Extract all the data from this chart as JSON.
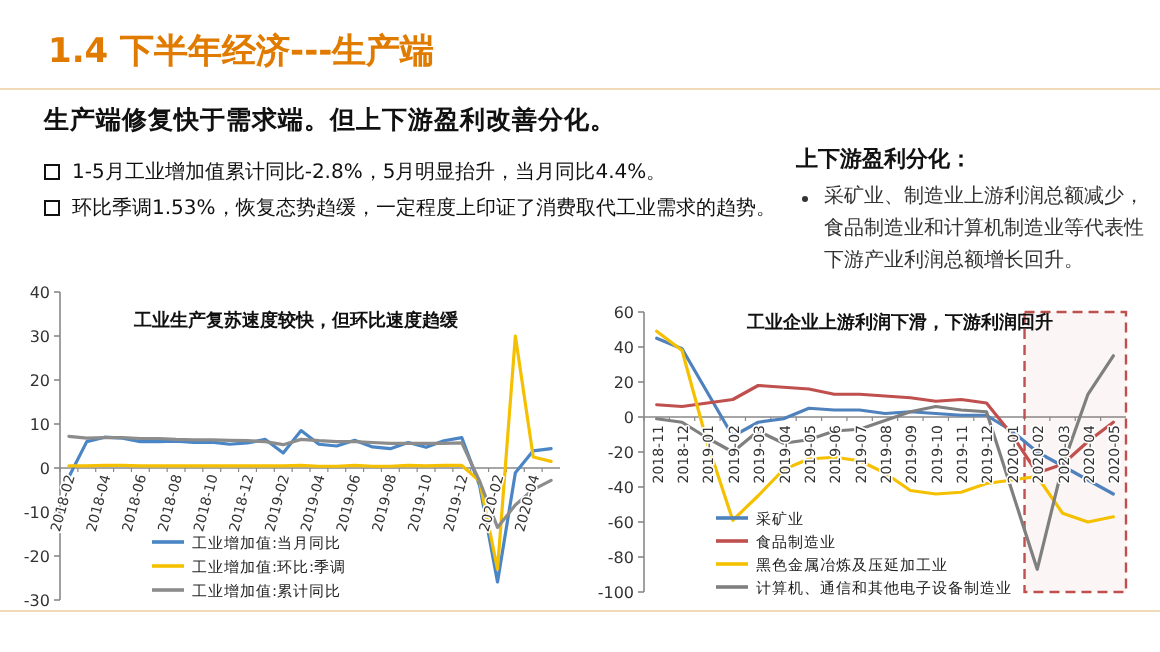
{
  "chart_data": [
    {
      "type": "other",
      "title": "1.4 下半年经济---生产端",
      "subtitle": "生产端修复快于需求端。但上下游盈利改善分化。",
      "annotations": [
        "1-5月工业增加值累计同比-2.8%，5月明显抬升，当月同比4.4%。",
        "环比季调1.53%，恢复态势趋缓，一定程度上印证了消费取代工业需求的趋势。",
        "上下游盈利分化：",
        "采矿业、制造业上游利润总额减少，食品制造业和计算机制造业等代表性下游产业利润总额增长回升。"
      ]
    },
    {
      "type": "line",
      "title": "工业生产复苏速度较快，但环比速度趋缓",
      "categories": [
        "2018-02",
        null,
        "2018-04",
        null,
        "2018-06",
        null,
        "2018-08",
        null,
        "2018-10",
        null,
        "2018-12",
        null,
        "2019-02",
        null,
        "2019-04",
        null,
        "2019-06",
        null,
        "2019-08",
        null,
        "2019-10",
        null,
        "2019-12",
        null,
        "2020-02",
        null,
        "2020-04",
        null
      ],
      "series": [
        {
          "name": "工业增加值:当月同比",
          "color": "#4a86c5",
          "values": [
            -2,
            6.0,
            7.0,
            6.8,
            6.0,
            6.0,
            6.1,
            5.8,
            5.9,
            5.4,
            5.7,
            6.5,
            3.4,
            8.5,
            5.4,
            5.0,
            6.3,
            4.8,
            4.4,
            5.8,
            4.7,
            6.2,
            6.9,
            -4,
            -25.9,
            -1.1,
            3.9,
            4.4
          ]
        },
        {
          "name": "工业增加值:环比:季调",
          "color": "#f5c000",
          "values": [
            0.5,
            0.5,
            0.6,
            0.6,
            0.5,
            0.5,
            0.5,
            0.5,
            0.5,
            0.5,
            0.5,
            0.5,
            0.5,
            0.6,
            0.4,
            0.4,
            0.6,
            0.4,
            0.4,
            0.6,
            0.5,
            0.6,
            0.6,
            -3,
            -23,
            30,
            2.5,
            1.5
          ]
        },
        {
          "name": "工业增加值:累计同比",
          "color": "#8c8c8c",
          "values": [
            7.2,
            6.8,
            6.9,
            6.9,
            6.7,
            6.7,
            6.5,
            6.4,
            6.4,
            6.3,
            6.2,
            6.0,
            5.3,
            6.5,
            6.2,
            6.0,
            6.0,
            5.8,
            5.6,
            5.6,
            5.6,
            5.6,
            5.7,
            -3,
            -13.5,
            -8.4,
            -4.9,
            -2.8
          ]
        }
      ],
      "ylim": [
        -30,
        40
      ],
      "yticks": [
        -30,
        -20,
        -10,
        0,
        10,
        20,
        30,
        40
      ],
      "legend": "bottom left"
    },
    {
      "type": "line",
      "title": "工业企业上游利润下滑，下游利润回升",
      "categories": [
        "2018-11",
        "2018-12",
        "2019-01",
        "2019-02",
        "2019-03",
        "2019-04",
        "2019-05",
        "2019-06",
        "2019-07",
        "2019-08",
        "2019-09",
        "2019-10",
        "2019-11",
        "2019-12",
        "2020-01",
        "2020-02",
        "2020-03",
        "2020-04",
        "2020-05"
      ],
      "series": [
        {
          "name": "采矿业",
          "color": "#4f81bd",
          "values": [
            45,
            39,
            14,
            -11,
            -3,
            -1,
            5,
            4,
            4,
            2,
            3,
            2,
            1,
            1,
            -8,
            -20,
            -28,
            -36,
            -44
          ]
        },
        {
          "name": "食品制造业",
          "color": "#c0504d",
          "values": [
            7,
            6,
            8,
            10,
            18,
            17,
            16,
            13,
            13,
            12,
            11,
            9,
            10,
            8,
            -10,
            -32,
            -27,
            -14,
            -3
          ]
        },
        {
          "name": "黑色金属冶炼及压延加工业",
          "color": "#f5c000",
          "values": [
            49,
            38,
            -15,
            -59,
            -45,
            -30,
            -24,
            -23,
            -25,
            -32,
            -42,
            -44,
            -43,
            -38,
            -36,
            -34,
            -55,
            -60,
            -57
          ]
        },
        {
          "name": "计算机、通信和其他电子设备制造业",
          "color": "#7f7f7f",
          "values": [
            -1,
            -3,
            -12,
            -20,
            -8,
            -15,
            -13,
            -8,
            -7,
            -2,
            3,
            6,
            4,
            3,
            -42,
            -87,
            -28,
            13,
            35
          ]
        }
      ],
      "ylim": [
        -100,
        60
      ],
      "yticks": [
        -100,
        -80,
        -60,
        -40,
        -20,
        0,
        20,
        40,
        60
      ],
      "legend": "bottom left",
      "bands": [
        {
          "axis": "x",
          "from": "2020-02",
          "to": "2020-05",
          "color": "#c0504d"
        }
      ]
    }
  ]
}
